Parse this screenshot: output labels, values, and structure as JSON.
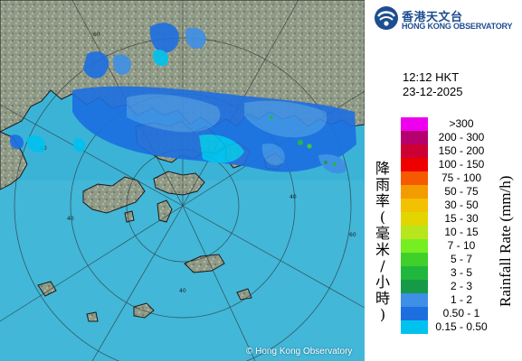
{
  "header": {
    "logo_zh": "香港天文台",
    "logo_en": "HONG KONG OBSERVATORY"
  },
  "timestamp": {
    "time": "12:12 HKT",
    "date": "23-12-2025"
  },
  "map": {
    "copyright": "© Hong Kong Observatory",
    "range_ring_labels": [
      "60",
      "60",
      "60",
      "40",
      "40",
      "40"
    ],
    "colors": {
      "sea": "#3bb3d6",
      "land": "#8f9a86",
      "coast": "#1a1a1a",
      "grid": "#2a2a2a"
    }
  },
  "legend": {
    "title_zh": [
      "降",
      "雨",
      "率",
      "(",
      "毫",
      "米",
      "/",
      "小",
      "時",
      ")"
    ],
    "title_en": "Rainfall Rate (mm/h)",
    "entries": [
      {
        "label": ">300",
        "color": "#ee00ee"
      },
      {
        "label": "200 - 300",
        "color": "#b5006e"
      },
      {
        "label": "150 - 200",
        "color": "#cc0033"
      },
      {
        "label": "100 - 150",
        "color": "#ee0000"
      },
      {
        "label": "75 - 100",
        "color": "#f55a00"
      },
      {
        "label": "50 - 75",
        "color": "#f29c00"
      },
      {
        "label": "30 - 50",
        "color": "#f2c100"
      },
      {
        "label": "15 - 30",
        "color": "#e3d600"
      },
      {
        "label": "10 - 15",
        "color": "#b7e61c"
      },
      {
        "label": "7 - 10",
        "color": "#75ee22"
      },
      {
        "label": "5 - 7",
        "color": "#3fd02a"
      },
      {
        "label": "3 - 5",
        "color": "#1fb83c"
      },
      {
        "label": "2 - 3",
        "color": "#169a48"
      },
      {
        "label": "1 - 2",
        "color": "#3f8fe6"
      },
      {
        "label": "0.50 - 1",
        "color": "#1d6fe0"
      },
      {
        "label": "0.15 - 0.50",
        "color": "#00c2ef"
      }
    ]
  }
}
